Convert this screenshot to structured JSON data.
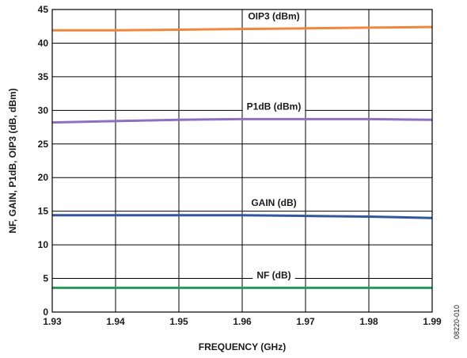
{
  "chart_data": {
    "type": "line",
    "title": "",
    "xlabel": "FREQUENCY (GHz)",
    "ylabel": "NF, GAIN, P1dB, OIP3 (dB, dBm)",
    "xlim": [
      1.93,
      1.99
    ],
    "ylim": [
      0,
      45
    ],
    "xticks": [
      "1.93",
      "1.94",
      "1.95",
      "1.96",
      "1.97",
      "1.98",
      "1.99"
    ],
    "yticks": [
      "0",
      "5",
      "10",
      "15",
      "20",
      "25",
      "30",
      "35",
      "40",
      "45"
    ],
    "grid": true,
    "series": [
      {
        "name": "OIP3 (dBm)",
        "color": "#f0873c",
        "x": [
          1.93,
          1.94,
          1.95,
          1.96,
          1.97,
          1.98,
          1.99
        ],
        "y": [
          41.9,
          41.9,
          42.0,
          42.1,
          42.2,
          42.3,
          42.4
        ]
      },
      {
        "name": "P1dB (dBm)",
        "color": "#8e6fc1",
        "x": [
          1.93,
          1.94,
          1.95,
          1.96,
          1.97,
          1.98,
          1.99
        ],
        "y": [
          28.2,
          28.4,
          28.6,
          28.7,
          28.7,
          28.7,
          28.6
        ]
      },
      {
        "name": "GAIN (dB)",
        "color": "#33579c",
        "x": [
          1.93,
          1.94,
          1.95,
          1.96,
          1.97,
          1.98,
          1.99
        ],
        "y": [
          14.4,
          14.4,
          14.4,
          14.4,
          14.3,
          14.2,
          14.0
        ]
      },
      {
        "name": "NF (dB)",
        "color": "#2a9a5a",
        "x": [
          1.93,
          1.94,
          1.95,
          1.96,
          1.97,
          1.98,
          1.99
        ],
        "y": [
          3.6,
          3.6,
          3.6,
          3.6,
          3.6,
          3.6,
          3.6
        ]
      }
    ]
  },
  "figure_id": "08220-010"
}
